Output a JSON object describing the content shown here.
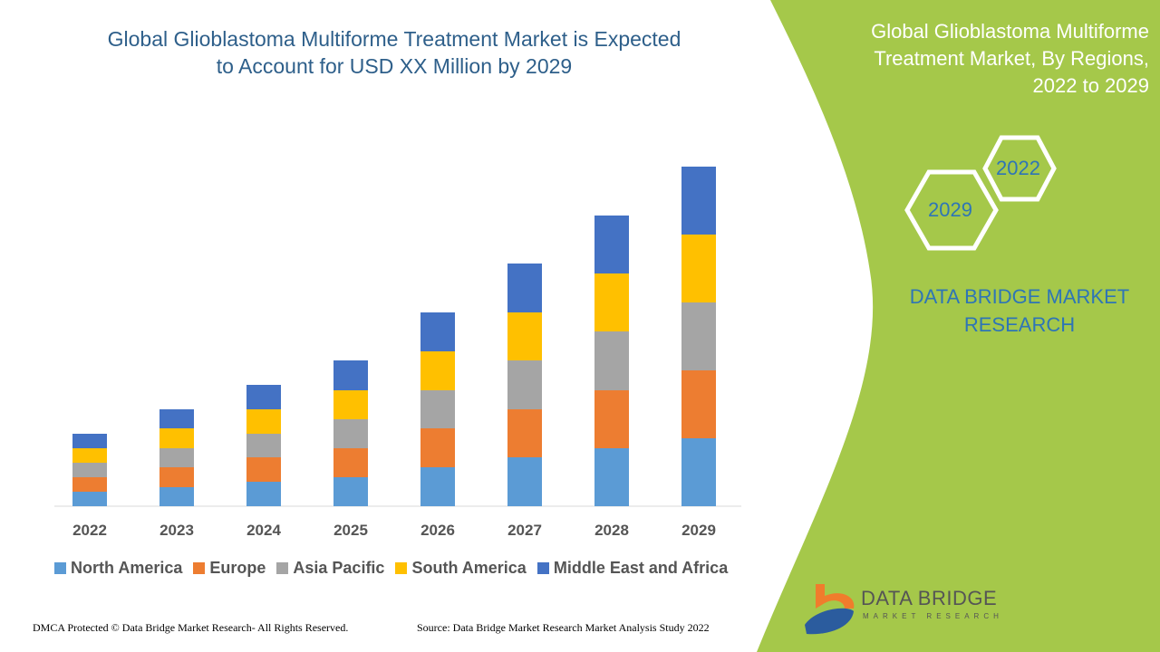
{
  "header": {
    "title_line1": "Global Glioblastoma Multiforme Treatment Market is Expected",
    "title_line2": "to Account for USD XX Million by 2029"
  },
  "side_panel": {
    "title_line1": "Global Glioblastoma Multiforme",
    "title_line2": "Treatment Market, By Regions,",
    "title_line3": "2022 to 2029",
    "hex_start": "2022",
    "hex_end": "2029",
    "brand_line1": "DATA BRIDGE MARKET",
    "brand_line2": "RESEARCH",
    "color": "#a5c84a"
  },
  "logo": {
    "name": "DATA BRIDGE",
    "sub": "MARKET RESEARCH"
  },
  "footer": {
    "left": "DMCA Protected © Data Bridge Market Research- All Rights Reserved.",
    "right": "Source: Data Bridge Market Research Market Analysis Study 2022"
  },
  "chart_data": {
    "type": "bar",
    "stacked": true,
    "title": "Global Glioblastoma Multiforme Treatment Market is Expected to Account for USD XX Million by 2029",
    "categories": [
      "2022",
      "2023",
      "2024",
      "2025",
      "2026",
      "2027",
      "2028",
      "2029"
    ],
    "series": [
      {
        "name": "North America",
        "color": "#5b9bd5",
        "values": [
          16,
          21,
          27,
          32,
          43,
          54,
          64,
          75
        ]
      },
      {
        "name": "Europe",
        "color": "#ed7d31",
        "values": [
          16,
          22,
          27,
          32,
          43,
          53,
          64,
          75
        ]
      },
      {
        "name": "Asia Pacific",
        "color": "#a5a5a5",
        "values": [
          16,
          21,
          26,
          32,
          42,
          54,
          65,
          75
        ]
      },
      {
        "name": "South America",
        "color": "#ffc000",
        "values": [
          16,
          22,
          27,
          32,
          43,
          53,
          64,
          75
        ]
      },
      {
        "name": "Middle East and Africa",
        "color": "#4472c4",
        "values": [
          16,
          21,
          27,
          33,
          43,
          54,
          64,
          75
        ]
      }
    ],
    "xlabel": "",
    "ylabel": "",
    "y_axis_shown": false,
    "grid": false,
    "legend_position": "bottom"
  }
}
